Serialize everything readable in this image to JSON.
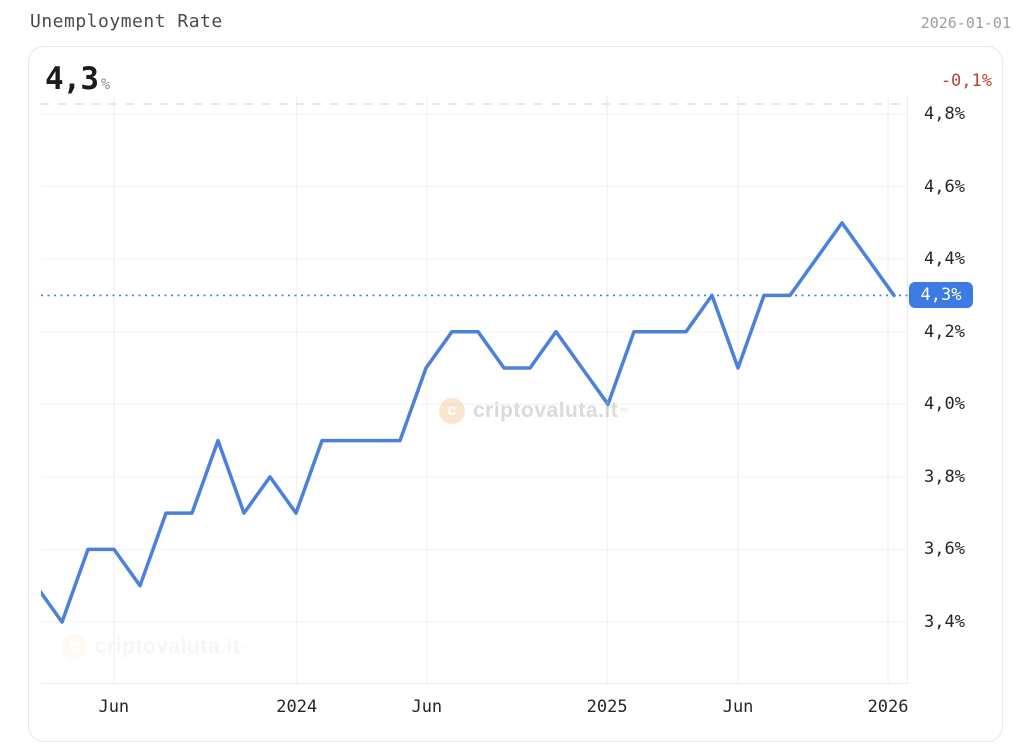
{
  "header": {
    "title": "Unemployment Rate",
    "date": "2026-01-01"
  },
  "card": {
    "current_value": "4,3",
    "current_unit": "%",
    "change_label": "-0,1%",
    "watermark": {
      "text": "criptovaluta.it",
      "mark": "™",
      "logo_letter": "c"
    }
  },
  "chart_data": {
    "type": "line",
    "title": "Unemployment Rate",
    "unit": "%",
    "x": [
      "2023-03",
      "2023-04",
      "2023-05",
      "2023-06",
      "2023-07",
      "2023-08",
      "2023-09",
      "2023-10",
      "2023-11",
      "2023-12",
      "2024-01",
      "2024-02",
      "2024-03",
      "2024-04",
      "2024-05",
      "2024-06",
      "2024-07",
      "2024-08",
      "2024-09",
      "2024-10",
      "2024-11",
      "2024-12",
      "2025-01",
      "2025-02",
      "2025-03",
      "2025-04",
      "2025-05",
      "2025-06",
      "2025-07",
      "2025-08",
      "2025-09",
      "2025-10",
      "2025-11",
      "2025-12"
    ],
    "values": [
      3.5,
      3.4,
      3.6,
      3.6,
      3.5,
      3.7,
      3.7,
      3.9,
      3.7,
      3.8,
      3.7,
      3.9,
      3.9,
      3.9,
      3.9,
      4.1,
      4.2,
      4.2,
      4.1,
      4.1,
      4.2,
      4.1,
      4.0,
      4.2,
      4.2,
      4.2,
      4.3,
      4.1,
      4.3,
      4.3,
      4.4,
      4.5,
      4.4,
      4.3
    ],
    "last_value": 4.3,
    "change": -0.1,
    "y_axis": {
      "side": "right",
      "ticks": [
        {
          "value": 4.8,
          "label": "4,8%"
        },
        {
          "value": 4.6,
          "label": "4,6%"
        },
        {
          "value": 4.4,
          "label": "4,4%"
        },
        {
          "value": 4.2,
          "label": "4,2%"
        },
        {
          "value": 4.0,
          "label": "4,0%"
        },
        {
          "value": 3.8,
          "label": "3,8%"
        },
        {
          "value": 3.6,
          "label": "3,6%"
        },
        {
          "value": 3.4,
          "label": "3,4%"
        }
      ],
      "badge": {
        "value": 4.3,
        "label": "4,3%"
      }
    },
    "x_axis": {
      "ticks": [
        {
          "label": "Jun",
          "pos": 0.084
        },
        {
          "label": "2024",
          "pos": 0.295
        },
        {
          "label": "Jun",
          "pos": 0.445
        },
        {
          "label": "2025",
          "pos": 0.653
        },
        {
          "label": "Jun",
          "pos": 0.804
        },
        {
          "label": "2026",
          "pos": 0.977
        }
      ]
    },
    "reference_line": {
      "value": 4.3,
      "style": "dotted"
    },
    "grid": true,
    "legend": "none",
    "ylim": [
      3.3,
      4.9
    ],
    "colors": {
      "line": "#4b80dc",
      "reference": "#3c7de6",
      "badge_bg": "#3d7be4",
      "badge_text": "#ffffff",
      "negative": "#b9453a",
      "grid_h": "#f2f2f2",
      "grid_v": "#ededed"
    }
  }
}
